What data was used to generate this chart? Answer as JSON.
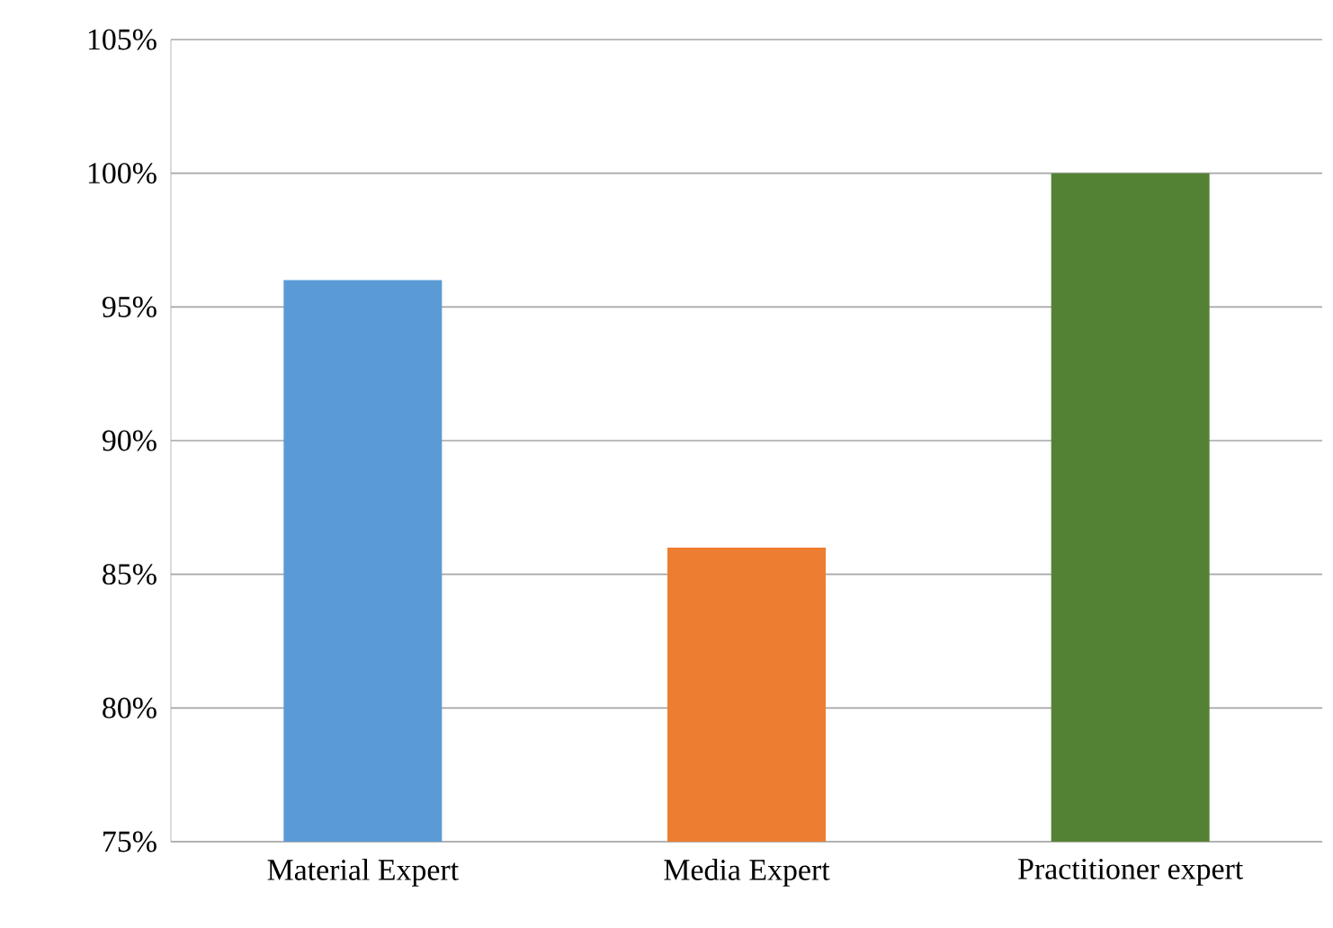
{
  "chart_data": {
    "type": "bar",
    "categories": [
      "Material Expert",
      "Media Expert",
      "Practitioner expert"
    ],
    "values": [
      96,
      86,
      100
    ],
    "colors": [
      "#5b9bd5",
      "#ed7d31",
      "#548235"
    ],
    "ylim": [
      75,
      105
    ],
    "yticks": [
      {
        "value": 75,
        "label": "75%"
      },
      {
        "value": 80,
        "label": "80%"
      },
      {
        "value": 85,
        "label": "85%"
      },
      {
        "value": 90,
        "label": "90%"
      },
      {
        "value": 95,
        "label": "95%"
      },
      {
        "value": 100,
        "label": "100%"
      },
      {
        "value": 105,
        "label": "105%"
      }
    ],
    "grid": "y"
  }
}
